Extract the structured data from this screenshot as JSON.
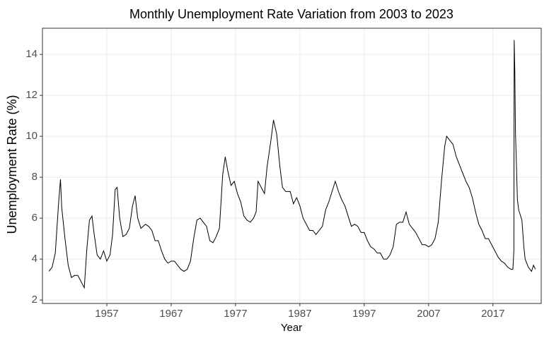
{
  "chart_data": {
    "type": "line",
    "title": "Monthly Unemployment Rate Variation from 2003 to 2023",
    "x_label": "Year",
    "y_label": "Unemployment Rate (%)",
    "xlim": [
      1947.0,
      2024.5
    ],
    "ylim": [
      1.83,
      15.28
    ],
    "xticks": [
      1957,
      1967,
      1977,
      1987,
      1997,
      2007,
      2017
    ],
    "yticks": [
      2,
      4,
      6,
      8,
      10,
      12,
      14
    ],
    "grid": true,
    "series": [
      {
        "color": "#000000",
        "x": [
          1948.0,
          1948.5,
          1949.0,
          1949.5,
          1949.8,
          1950.0,
          1950.5,
          1951.0,
          1951.5,
          1952.0,
          1952.5,
          1953.0,
          1953.5,
          1953.9,
          1954.3,
          1954.7,
          1955.0,
          1955.5,
          1956.0,
          1956.5,
          1957.0,
          1957.5,
          1957.9,
          1958.3,
          1958.6,
          1959.0,
          1959.5,
          1960.0,
          1960.5,
          1961.0,
          1961.4,
          1961.8,
          1962.3,
          1963.0,
          1963.5,
          1964.0,
          1964.5,
          1965.0,
          1965.5,
          1966.0,
          1966.5,
          1967.0,
          1967.5,
          1968.0,
          1968.5,
          1969.0,
          1969.5,
          1970.0,
          1970.5,
          1971.0,
          1971.5,
          1972.0,
          1972.5,
          1973.0,
          1973.5,
          1974.0,
          1974.5,
          1975.0,
          1975.4,
          1975.8,
          1976.3,
          1976.8,
          1977.3,
          1977.8,
          1978.3,
          1978.8,
          1979.3,
          1979.8,
          1980.2,
          1980.5,
          1981.0,
          1981.5,
          1981.9,
          1982.5,
          1982.9,
          1983.4,
          1983.9,
          1984.3,
          1984.8,
          1985.5,
          1986.0,
          1986.5,
          1987.0,
          1987.5,
          1988.0,
          1988.5,
          1989.0,
          1989.5,
          1990.0,
          1990.5,
          1991.0,
          1991.5,
          1992.0,
          1992.5,
          1993.0,
          1993.5,
          1994.0,
          1994.5,
          1995.0,
          1995.5,
          1996.0,
          1996.5,
          1997.0,
          1997.5,
          1998.0,
          1998.5,
          1999.0,
          1999.5,
          2000.0,
          2000.5,
          2001.0,
          2001.5,
          2002.0,
          2002.5,
          2003.0,
          2003.5,
          2004.0,
          2004.5,
          2005.0,
          2005.5,
          2006.0,
          2006.5,
          2007.0,
          2007.5,
          2008.0,
          2008.5,
          2009.0,
          2009.5,
          2009.8,
          2010.3,
          2010.8,
          2011.3,
          2011.8,
          2012.3,
          2012.8,
          2013.3,
          2013.8,
          2014.3,
          2014.8,
          2015.3,
          2015.8,
          2016.3,
          2016.8,
          2017.3,
          2017.8,
          2018.3,
          2018.8,
          2019.3,
          2019.8,
          2020.1,
          2020.25,
          2020.3,
          2020.4,
          2020.5,
          2020.8,
          2021.0,
          2021.5,
          2021.8,
          2022.0,
          2022.5,
          2023.0,
          2023.3,
          2023.6
        ],
        "values": [
          3.4,
          3.6,
          4.3,
          6.7,
          7.9,
          6.5,
          5.0,
          3.7,
          3.1,
          3.2,
          3.2,
          2.9,
          2.6,
          4.5,
          5.9,
          6.1,
          5.3,
          4.2,
          4.0,
          4.4,
          3.9,
          4.2,
          5.2,
          7.4,
          7.5,
          6.0,
          5.1,
          5.2,
          5.5,
          6.6,
          7.1,
          6.0,
          5.5,
          5.7,
          5.6,
          5.4,
          4.9,
          4.9,
          4.4,
          4.0,
          3.8,
          3.9,
          3.9,
          3.7,
          3.5,
          3.4,
          3.5,
          3.9,
          5.0,
          5.9,
          6.0,
          5.8,
          5.6,
          4.9,
          4.8,
          5.1,
          5.5,
          8.1,
          9.0,
          8.3,
          7.6,
          7.8,
          7.2,
          6.8,
          6.1,
          5.9,
          5.8,
          6.0,
          6.3,
          7.8,
          7.5,
          7.2,
          8.5,
          9.8,
          10.8,
          10.1,
          8.5,
          7.5,
          7.3,
          7.3,
          6.7,
          7.0,
          6.6,
          6.0,
          5.7,
          5.4,
          5.4,
          5.2,
          5.4,
          5.6,
          6.4,
          6.8,
          7.3,
          7.8,
          7.3,
          6.9,
          6.6,
          6.1,
          5.6,
          5.7,
          5.6,
          5.3,
          5.3,
          4.9,
          4.6,
          4.5,
          4.3,
          4.3,
          4.0,
          4.0,
          4.2,
          4.6,
          5.7,
          5.8,
          5.8,
          6.3,
          5.7,
          5.5,
          5.3,
          5.0,
          4.7,
          4.7,
          4.6,
          4.7,
          5.0,
          5.8,
          7.8,
          9.5,
          10.0,
          9.8,
          9.6,
          9.0,
          8.6,
          8.2,
          7.8,
          7.5,
          7.0,
          6.3,
          5.7,
          5.4,
          5.0,
          5.0,
          4.7,
          4.4,
          4.1,
          3.9,
          3.8,
          3.6,
          3.5,
          3.5,
          4.4,
          14.7,
          13.2,
          10.2,
          6.9,
          6.4,
          5.9,
          4.6,
          4.0,
          3.6,
          3.4,
          3.7,
          3.5
        ]
      }
    ]
  }
}
